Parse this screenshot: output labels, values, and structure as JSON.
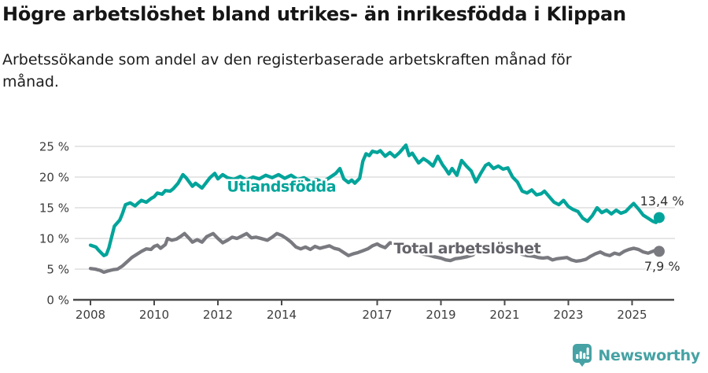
{
  "title": "Högre arbetslöshet bland utrikes- än inrikesfödda i Klippan",
  "subtitle_line1": "Arbetssökande som andel av den registerbaserade arbetskraften månad för",
  "subtitle_line2": "månad.",
  "footer": {
    "brand": "Newsworthy",
    "brand_color": "#46a2a4",
    "logo_icon": "bar-chart-exclamation-speech-bubble-icon"
  },
  "chart_data": {
    "type": "line",
    "grid": "horizontal",
    "xlim": [
      2008,
      2026.4
    ],
    "ylim": [
      0,
      26
    ],
    "x_ticks": [
      2008,
      2010,
      2012,
      2014,
      2017,
      2019,
      2021,
      2023,
      2025
    ],
    "y_ticks": [
      0,
      5,
      10,
      15,
      20,
      25
    ],
    "y_tick_suffix": " %",
    "legend_position": "inline-labels",
    "series": [
      {
        "id": "utlandsfodda",
        "name": "Utlandsfödda",
        "color": "#00a49a",
        "label_color": "#00a49a",
        "label_anchor": {
          "x": 2012.28,
          "y": 17.65
        },
        "end_value_label": "13,4 %",
        "points": [
          [
            2008.0,
            8.9
          ],
          [
            2008.17,
            8.6
          ],
          [
            2008.25,
            8.1
          ],
          [
            2008.42,
            7.2
          ],
          [
            2008.5,
            7.4
          ],
          [
            2008.58,
            8.5
          ],
          [
            2008.75,
            12.0
          ],
          [
            2008.92,
            13.0
          ],
          [
            2009.0,
            14.0
          ],
          [
            2009.1,
            15.5
          ],
          [
            2009.25,
            15.8
          ],
          [
            2009.4,
            15.3
          ],
          [
            2009.5,
            15.8
          ],
          [
            2009.6,
            16.2
          ],
          [
            2009.75,
            15.9
          ],
          [
            2009.9,
            16.5
          ],
          [
            2010.0,
            16.8
          ],
          [
            2010.1,
            17.4
          ],
          [
            2010.25,
            17.2
          ],
          [
            2010.35,
            17.8
          ],
          [
            2010.5,
            17.7
          ],
          [
            2010.6,
            18.1
          ],
          [
            2010.75,
            19.0
          ],
          [
            2010.9,
            20.4
          ],
          [
            2011.0,
            19.9
          ],
          [
            2011.2,
            18.5
          ],
          [
            2011.3,
            19.0
          ],
          [
            2011.5,
            18.2
          ],
          [
            2011.75,
            19.9
          ],
          [
            2011.9,
            20.6
          ],
          [
            2012.0,
            19.7
          ],
          [
            2012.15,
            20.4
          ],
          [
            2012.3,
            19.9
          ],
          [
            2012.5,
            19.6
          ],
          [
            2012.7,
            20.1
          ],
          [
            2012.9,
            19.5
          ],
          [
            2013.1,
            20.0
          ],
          [
            2013.3,
            19.7
          ],
          [
            2013.5,
            20.3
          ],
          [
            2013.7,
            19.9
          ],
          [
            2013.9,
            20.4
          ],
          [
            2014.1,
            19.8
          ],
          [
            2014.3,
            20.3
          ],
          [
            2014.5,
            19.6
          ],
          [
            2014.7,
            19.9
          ],
          [
            2014.9,
            19.3
          ],
          [
            2015.1,
            19.6
          ],
          [
            2015.3,
            19.2
          ],
          [
            2015.5,
            19.9
          ],
          [
            2015.7,
            20.6
          ],
          [
            2015.83,
            21.4
          ],
          [
            2015.95,
            19.7
          ],
          [
            2016.1,
            19.1
          ],
          [
            2016.2,
            19.5
          ],
          [
            2016.3,
            19.0
          ],
          [
            2016.45,
            19.8
          ],
          [
            2016.55,
            22.6
          ],
          [
            2016.65,
            23.8
          ],
          [
            2016.75,
            23.5
          ],
          [
            2016.85,
            24.2
          ],
          [
            2017.0,
            24.0
          ],
          [
            2017.1,
            24.3
          ],
          [
            2017.25,
            23.4
          ],
          [
            2017.4,
            24.0
          ],
          [
            2017.55,
            23.3
          ],
          [
            2017.7,
            24.0
          ],
          [
            2017.9,
            25.2
          ],
          [
            2018.0,
            23.5
          ],
          [
            2018.1,
            23.9
          ],
          [
            2018.3,
            22.3
          ],
          [
            2018.45,
            23.0
          ],
          [
            2018.6,
            22.5
          ],
          [
            2018.75,
            21.8
          ],
          [
            2018.9,
            23.4
          ],
          [
            2019.05,
            22.0
          ],
          [
            2019.15,
            21.3
          ],
          [
            2019.25,
            20.5
          ],
          [
            2019.35,
            21.4
          ],
          [
            2019.5,
            20.3
          ],
          [
            2019.65,
            22.7
          ],
          [
            2019.8,
            21.8
          ],
          [
            2019.95,
            21.0
          ],
          [
            2020.1,
            19.2
          ],
          [
            2020.25,
            20.6
          ],
          [
            2020.4,
            21.9
          ],
          [
            2020.5,
            22.2
          ],
          [
            2020.65,
            21.4
          ],
          [
            2020.8,
            21.8
          ],
          [
            2020.95,
            21.3
          ],
          [
            2021.1,
            21.5
          ],
          [
            2021.25,
            20.0
          ],
          [
            2021.4,
            19.2
          ],
          [
            2021.55,
            17.7
          ],
          [
            2021.7,
            17.4
          ],
          [
            2021.85,
            17.9
          ],
          [
            2022.0,
            17.1
          ],
          [
            2022.15,
            17.3
          ],
          [
            2022.25,
            17.7
          ],
          [
            2022.4,
            16.8
          ],
          [
            2022.55,
            15.9
          ],
          [
            2022.7,
            15.5
          ],
          [
            2022.85,
            16.2
          ],
          [
            2023.0,
            15.2
          ],
          [
            2023.15,
            14.7
          ],
          [
            2023.3,
            14.4
          ],
          [
            2023.45,
            13.3
          ],
          [
            2023.6,
            12.8
          ],
          [
            2023.75,
            13.7
          ],
          [
            2023.9,
            15.0
          ],
          [
            2024.05,
            14.2
          ],
          [
            2024.2,
            14.6
          ],
          [
            2024.35,
            14.0
          ],
          [
            2024.5,
            14.6
          ],
          [
            2024.65,
            14.1
          ],
          [
            2024.8,
            14.4
          ],
          [
            2024.95,
            15.2
          ],
          [
            2025.05,
            15.7
          ],
          [
            2025.2,
            14.8
          ],
          [
            2025.35,
            13.8
          ],
          [
            2025.5,
            13.3
          ],
          [
            2025.65,
            12.8
          ],
          [
            2025.75,
            12.6
          ],
          [
            2025.85,
            13.4
          ]
        ]
      },
      {
        "id": "total",
        "name": "Total arbetslöshet",
        "color": "#797980",
        "label_color": "#64646b",
        "label_anchor": {
          "x": 2017.52,
          "y": 7.55
        },
        "end_value_label": "7,9 %",
        "points": [
          [
            2008.0,
            5.1
          ],
          [
            2008.15,
            5.0
          ],
          [
            2008.3,
            4.8
          ],
          [
            2008.42,
            4.5
          ],
          [
            2008.55,
            4.7
          ],
          [
            2008.7,
            4.9
          ],
          [
            2008.85,
            5.0
          ],
          [
            2009.0,
            5.5
          ],
          [
            2009.15,
            6.2
          ],
          [
            2009.3,
            6.9
          ],
          [
            2009.45,
            7.4
          ],
          [
            2009.6,
            7.9
          ],
          [
            2009.75,
            8.3
          ],
          [
            2009.9,
            8.2
          ],
          [
            2010.0,
            8.7
          ],
          [
            2010.1,
            8.9
          ],
          [
            2010.2,
            8.4
          ],
          [
            2010.35,
            9.0
          ],
          [
            2010.42,
            10.0
          ],
          [
            2010.55,
            9.7
          ],
          [
            2010.7,
            9.9
          ],
          [
            2010.85,
            10.4
          ],
          [
            2010.95,
            10.8
          ],
          [
            2011.1,
            10.0
          ],
          [
            2011.2,
            9.4
          ],
          [
            2011.35,
            9.8
          ],
          [
            2011.5,
            9.4
          ],
          [
            2011.65,
            10.3
          ],
          [
            2011.85,
            10.8
          ],
          [
            2012.0,
            10.0
          ],
          [
            2012.15,
            9.3
          ],
          [
            2012.3,
            9.7
          ],
          [
            2012.45,
            10.2
          ],
          [
            2012.6,
            10.0
          ],
          [
            2012.75,
            10.4
          ],
          [
            2012.9,
            10.8
          ],
          [
            2013.05,
            10.1
          ],
          [
            2013.2,
            10.2
          ],
          [
            2013.35,
            10.0
          ],
          [
            2013.55,
            9.7
          ],
          [
            2013.7,
            10.2
          ],
          [
            2013.85,
            10.8
          ],
          [
            2014.0,
            10.5
          ],
          [
            2014.15,
            10.0
          ],
          [
            2014.3,
            9.4
          ],
          [
            2014.45,
            8.6
          ],
          [
            2014.6,
            8.3
          ],
          [
            2014.75,
            8.6
          ],
          [
            2014.9,
            8.2
          ],
          [
            2015.05,
            8.7
          ],
          [
            2015.2,
            8.4
          ],
          [
            2015.35,
            8.6
          ],
          [
            2015.5,
            8.8
          ],
          [
            2015.65,
            8.4
          ],
          [
            2015.8,
            8.2
          ],
          [
            2015.95,
            7.7
          ],
          [
            2016.1,
            7.2
          ],
          [
            2016.25,
            7.5
          ],
          [
            2016.4,
            7.7
          ],
          [
            2016.55,
            8.0
          ],
          [
            2016.7,
            8.3
          ],
          [
            2016.85,
            8.8
          ],
          [
            2017.0,
            9.1
          ],
          [
            2017.1,
            8.8
          ],
          [
            2017.25,
            8.5
          ],
          [
            2017.4,
            9.3
          ],
          [
            2017.55,
            9.1
          ],
          [
            2017.7,
            8.9
          ],
          [
            2017.85,
            8.6
          ],
          [
            2018.0,
            8.3
          ],
          [
            2018.2,
            7.9
          ],
          [
            2018.4,
            7.5
          ],
          [
            2018.6,
            7.3
          ],
          [
            2018.8,
            7.0
          ],
          [
            2019.0,
            6.8
          ],
          [
            2019.15,
            6.5
          ],
          [
            2019.3,
            6.4
          ],
          [
            2019.45,
            6.7
          ],
          [
            2019.6,
            6.8
          ],
          [
            2019.8,
            7.0
          ],
          [
            2020.0,
            7.3
          ],
          [
            2020.2,
            8.4
          ],
          [
            2020.35,
            8.8
          ],
          [
            2020.5,
            8.9
          ],
          [
            2020.7,
            8.7
          ],
          [
            2020.9,
            8.5
          ],
          [
            2021.1,
            8.2
          ],
          [
            2021.3,
            7.8
          ],
          [
            2021.5,
            7.5
          ],
          [
            2021.7,
            7.2
          ],
          [
            2021.9,
            7.1
          ],
          [
            2022.05,
            6.9
          ],
          [
            2022.2,
            6.8
          ],
          [
            2022.35,
            6.9
          ],
          [
            2022.5,
            6.5
          ],
          [
            2022.65,
            6.7
          ],
          [
            2022.8,
            6.8
          ],
          [
            2022.95,
            6.9
          ],
          [
            2023.1,
            6.5
          ],
          [
            2023.25,
            6.3
          ],
          [
            2023.4,
            6.4
          ],
          [
            2023.55,
            6.6
          ],
          [
            2023.7,
            7.1
          ],
          [
            2023.85,
            7.5
          ],
          [
            2024.0,
            7.8
          ],
          [
            2024.15,
            7.4
          ],
          [
            2024.3,
            7.2
          ],
          [
            2024.45,
            7.6
          ],
          [
            2024.6,
            7.4
          ],
          [
            2024.75,
            7.9
          ],
          [
            2024.9,
            8.2
          ],
          [
            2025.05,
            8.4
          ],
          [
            2025.2,
            8.2
          ],
          [
            2025.35,
            7.8
          ],
          [
            2025.5,
            7.6
          ],
          [
            2025.65,
            7.9
          ],
          [
            2025.75,
            8.1
          ],
          [
            2025.85,
            7.9
          ]
        ]
      }
    ],
    "end_labels": [
      {
        "text": "13,4 %",
        "x": 2025.25,
        "y": 15.4
      },
      {
        "text": "7,9 %",
        "x": 2025.38,
        "y": 4.75
      }
    ]
  }
}
